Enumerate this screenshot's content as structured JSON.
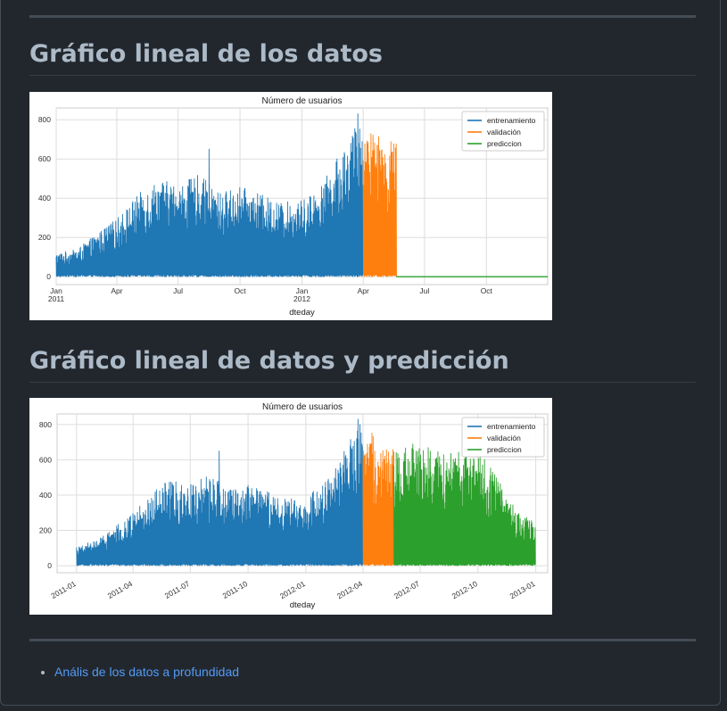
{
  "headings": {
    "chart1": "Gráfico lineal de los datos",
    "chart2": "Gráfico lineal de datos y predicción"
  },
  "links": [
    {
      "label": "Anális de los datos a profundidad"
    }
  ],
  "colors": {
    "entrenamiento": "#1f77b4",
    "validacion": "#ff7f0e",
    "prediccion": "#2ca02c"
  },
  "chart_data": [
    {
      "type": "line",
      "title": "Número de usuarios",
      "xlabel": "dteday",
      "ylabel": "",
      "ylim": [
        -40,
        860
      ],
      "yticks": [
        0,
        200,
        400,
        600,
        800
      ],
      "x_range": [
        "2011-01",
        "2012-12-31"
      ],
      "xticks": [
        {
          "x": "2011-01",
          "label": "Jan",
          "sub": "2011"
        },
        {
          "x": "2011-04",
          "label": "Apr",
          "sub": ""
        },
        {
          "x": "2011-07",
          "label": "Jul",
          "sub": ""
        },
        {
          "x": "2011-10",
          "label": "Oct",
          "sub": ""
        },
        {
          "x": "2012-01",
          "label": "Jan",
          "sub": "2012"
        },
        {
          "x": "2012-04",
          "label": "Apr",
          "sub": ""
        },
        {
          "x": "2012-07",
          "label": "Jul",
          "sub": ""
        },
        {
          "x": "2012-10",
          "label": "Oct",
          "sub": ""
        }
      ],
      "grid": true,
      "legend": "top-right",
      "series": [
        {
          "name": "entrenamiento",
          "x_start": "2011-01-01",
          "x_end": "2012-03-31",
          "envelope": [
            [
              0,
              120
            ],
            [
              1,
              140
            ],
            [
              2,
              220
            ],
            [
              3,
              300
            ],
            [
              4,
              420
            ],
            [
              5,
              500
            ],
            [
              6,
              470
            ],
            [
              7,
              520
            ],
            [
              8,
              430
            ],
            [
              9,
              460
            ],
            [
              10,
              420
            ],
            [
              11,
              380
            ],
            [
              12,
              390
            ],
            [
              13,
              470
            ],
            [
              14,
              650
            ],
            [
              15,
              830
            ]
          ],
          "peaks": [
            [
              "2011-08-16",
              650
            ],
            [
              "2012-03-24",
              830
            ]
          ]
        },
        {
          "name": "validación",
          "x_start": "2012-04-01",
          "x_end": "2012-05-20",
          "envelope": [
            [
              0,
              700
            ],
            [
              1,
              760
            ],
            [
              2,
              720
            ],
            [
              3,
              680
            ],
            [
              4,
              730
            ]
          ]
        },
        {
          "name": "prediccion",
          "x_start": "2012-05-20",
          "x_end": "2012-12-31",
          "constant": 0
        }
      ]
    },
    {
      "type": "line",
      "title": "Número de usuarios",
      "xlabel": "dteday",
      "ylabel": "",
      "ylim": [
        -40,
        860
      ],
      "yticks": [
        0,
        200,
        400,
        600,
        800
      ],
      "x_range": [
        "2010-12-01",
        "2013-01-20"
      ],
      "xticks": [
        {
          "x": "2011-01",
          "label": "2011-01"
        },
        {
          "x": "2011-04",
          "label": "2011-04"
        },
        {
          "x": "2011-07",
          "label": "2011-07"
        },
        {
          "x": "2011-10",
          "label": "2011-10"
        },
        {
          "x": "2012-01",
          "label": "2012-01"
        },
        {
          "x": "2012-04",
          "label": "2012-04"
        },
        {
          "x": "2012-07",
          "label": "2012-07"
        },
        {
          "x": "2012-10",
          "label": "2012-10"
        },
        {
          "x": "2013-01",
          "label": "2013-01"
        }
      ],
      "grid": true,
      "legend": "top-right",
      "series": [
        {
          "name": "entrenamiento",
          "x_start": "2011-01-01",
          "x_end": "2012-03-31",
          "envelope": [
            [
              0,
              120
            ],
            [
              1,
              140
            ],
            [
              2,
              220
            ],
            [
              3,
              300
            ],
            [
              4,
              420
            ],
            [
              5,
              500
            ],
            [
              6,
              470
            ],
            [
              7,
              520
            ],
            [
              8,
              430
            ],
            [
              9,
              460
            ],
            [
              10,
              420
            ],
            [
              11,
              380
            ],
            [
              12,
              390
            ],
            [
              13,
              470
            ],
            [
              14,
              650
            ],
            [
              15,
              830
            ]
          ],
          "peaks": [
            [
              "2011-08-16",
              650
            ],
            [
              "2012-03-24",
              830
            ]
          ]
        },
        {
          "name": "validación",
          "x_start": "2012-04-01",
          "x_end": "2012-05-20",
          "envelope": [
            [
              0,
              700
            ],
            [
              1,
              760
            ],
            [
              2,
              720
            ],
            [
              3,
              680
            ],
            [
              4,
              730
            ]
          ]
        },
        {
          "name": "prediccion",
          "x_start": "2012-05-20",
          "x_end": "2012-12-31",
          "envelope": [
            [
              0,
              650
            ],
            [
              1,
              690
            ],
            [
              2,
              680
            ],
            [
              3,
              660
            ],
            [
              4,
              640
            ],
            [
              5,
              620
            ],
            [
              6,
              480
            ],
            [
              7,
              300
            ],
            [
              8,
              250
            ]
          ]
        }
      ]
    }
  ]
}
